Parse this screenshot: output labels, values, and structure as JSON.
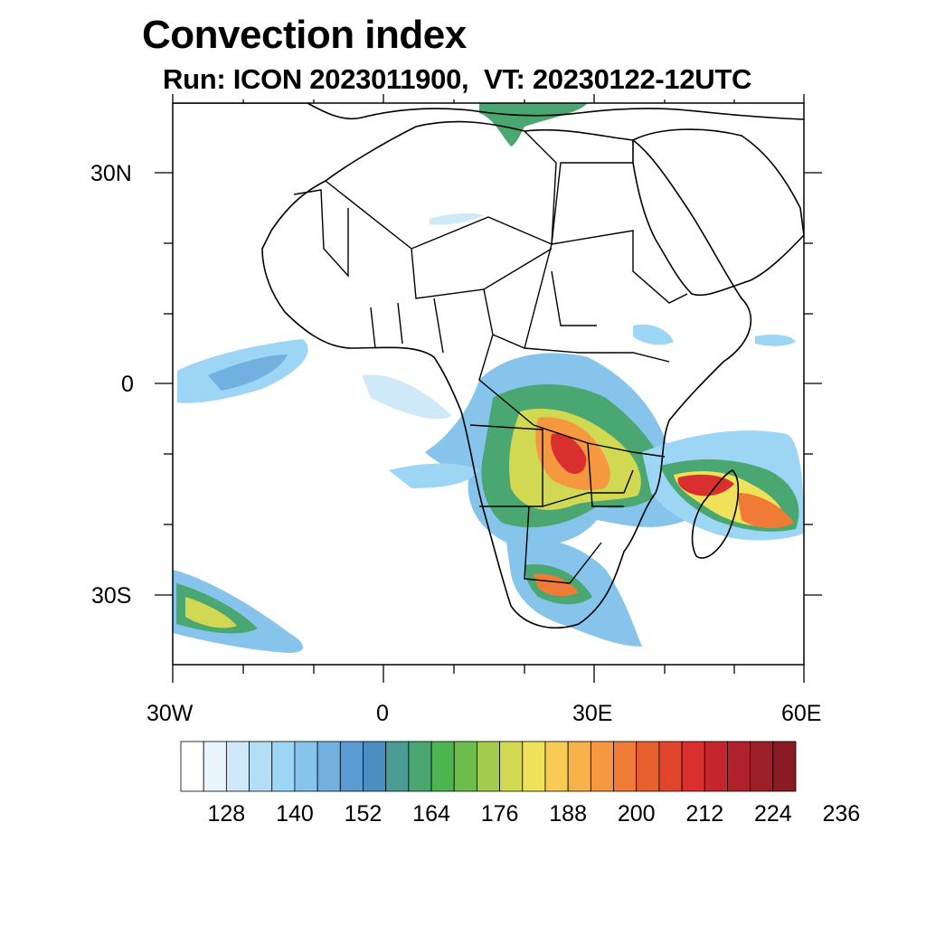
{
  "title": "Convection index",
  "subtitle": "Run: ICON 2023011900,  VT: 20230122-12UTC",
  "axes": {
    "lat_labels": [
      "30N",
      "0",
      "30S"
    ],
    "lon_labels": [
      "30W",
      "0",
      "30E",
      "60E"
    ]
  },
  "colorbar": {
    "labels": [
      "128",
      "140",
      "152",
      "164",
      "176",
      "188",
      "200",
      "212",
      "224",
      "236"
    ],
    "colors": [
      "#ffffff",
      "#e8f5fc",
      "#cfe9f8",
      "#b4def5",
      "#9dd6f4",
      "#86c4ec",
      "#72b0e2",
      "#5b9ad2",
      "#4a8fbf",
      "#4b9c94",
      "#4aa771",
      "#4db54f",
      "#6cbd4c",
      "#a3cb4c",
      "#d1d953",
      "#f0e15b",
      "#f7cb55",
      "#f6b24a",
      "#f59840",
      "#f07b36",
      "#e9602f",
      "#e2452e",
      "#d92f2f",
      "#c5262d",
      "#b0222b",
      "#9c1f27",
      "#8a1b22"
    ]
  },
  "map_features": {
    "land_outline_icon": "africa-coastline",
    "field": "convection-index-shading"
  }
}
